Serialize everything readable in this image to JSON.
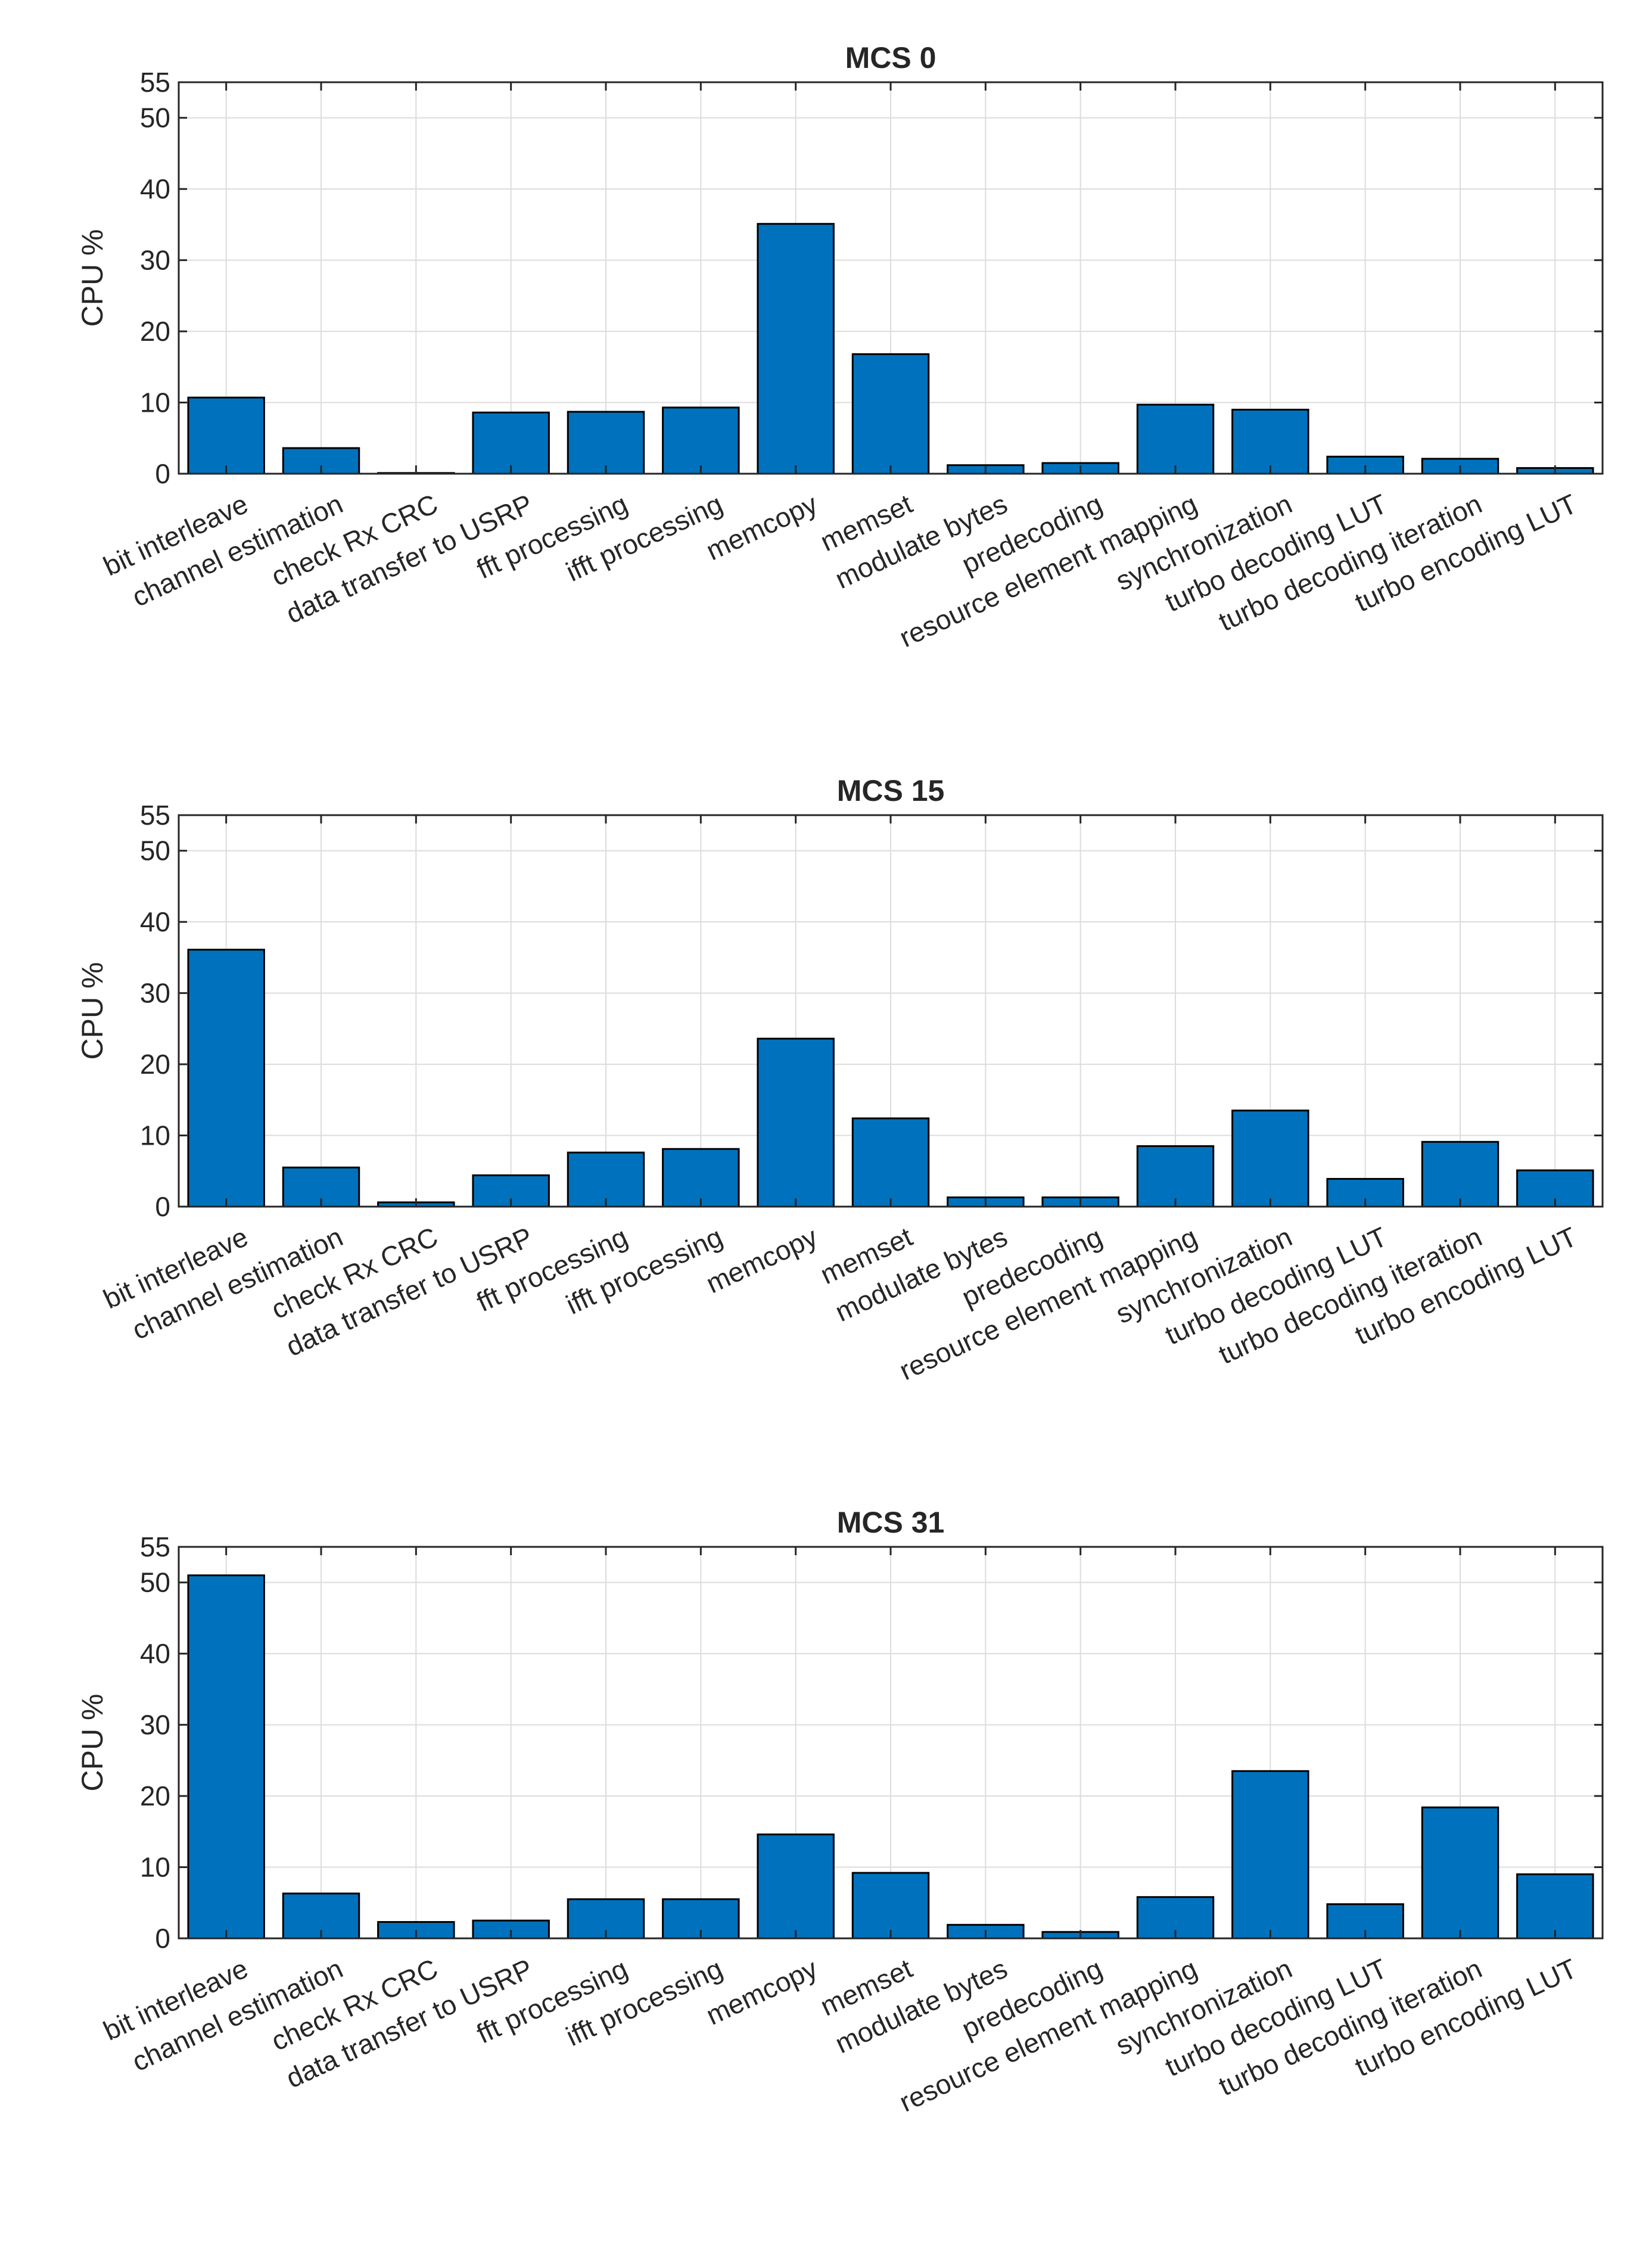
{
  "chart_data": [
    {
      "type": "bar",
      "title": "MCS 0",
      "xlabel": "",
      "ylabel": "CPU %",
      "ylim": [
        0,
        55
      ],
      "yticks": [
        0,
        10,
        20,
        30,
        40,
        50,
        55
      ],
      "grid": true,
      "categories": [
        "bit interleave",
        "channel estimation",
        "check Rx CRC",
        "data transfer to USRP",
        "fft processing",
        "ifft processing",
        "memcopy",
        "memset",
        "modulate bytes",
        "predecoding",
        "resource element mapping",
        "synchronization",
        "turbo decoding LUT",
        "turbo decoding iteration",
        "turbo encoding LUT"
      ],
      "values": [
        10.7,
        3.6,
        0.1,
        8.6,
        8.7,
        9.3,
        35.1,
        16.8,
        1.2,
        1.5,
        9.7,
        9.0,
        2.4,
        2.1,
        0.8
      ]
    },
    {
      "type": "bar",
      "title": "MCS 15",
      "xlabel": "",
      "ylabel": "CPU %",
      "ylim": [
        0,
        55
      ],
      "yticks": [
        0,
        10,
        20,
        30,
        40,
        50,
        55
      ],
      "grid": true,
      "categories": [
        "bit interleave",
        "channel estimation",
        "check Rx CRC",
        "data transfer to USRP",
        "fft processing",
        "ifft processing",
        "memcopy",
        "memset",
        "modulate bytes",
        "predecoding",
        "resource element mapping",
        "synchronization",
        "turbo decoding LUT",
        "turbo decoding iteration",
        "turbo encoding LUT"
      ],
      "values": [
        36.1,
        5.5,
        0.6,
        4.4,
        7.6,
        8.1,
        23.6,
        12.4,
        1.3,
        1.3,
        8.5,
        13.5,
        3.9,
        9.1,
        5.1
      ]
    },
    {
      "type": "bar",
      "title": "MCS 31",
      "xlabel": "",
      "ylabel": "CPU %",
      "ylim": [
        0,
        55
      ],
      "yticks": [
        0,
        10,
        20,
        30,
        40,
        50,
        55
      ],
      "grid": true,
      "categories": [
        "bit interleave",
        "channel estimation",
        "check Rx CRC",
        "data transfer to USRP",
        "fft processing",
        "ifft processing",
        "memcopy",
        "memset",
        "modulate bytes",
        "predecoding",
        "resource element mapping",
        "synchronization",
        "turbo decoding LUT",
        "turbo decoding iteration",
        "turbo encoding LUT"
      ],
      "values": [
        51.0,
        6.3,
        2.3,
        2.5,
        5.5,
        5.5,
        14.6,
        9.2,
        1.9,
        0.9,
        5.8,
        23.5,
        4.8,
        18.4,
        9.0
      ]
    }
  ],
  "colors": {
    "bar_fill": "#0072bd",
    "bar_edge": "#000000",
    "grid": "#dcdcdc",
    "axes": "#262626"
  }
}
